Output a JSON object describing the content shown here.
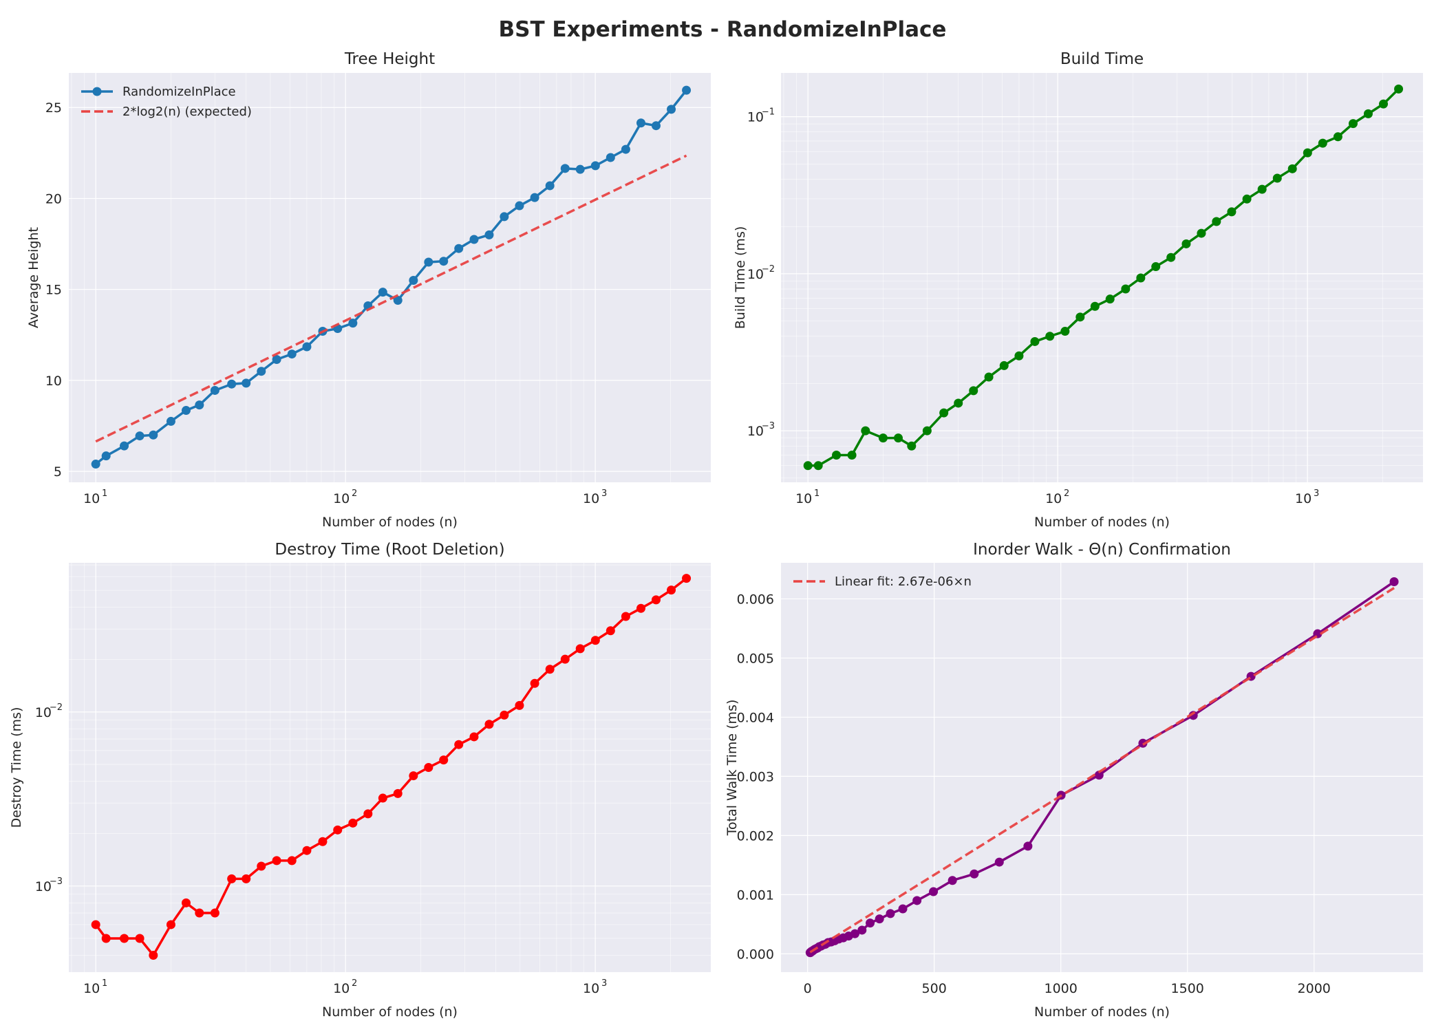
{
  "suptitle": "BST Experiments - RandomizeInPlace",
  "colors": {
    "blue": "#1f77b4",
    "green": "#008000",
    "red": "#ff0000",
    "purple": "#800080",
    "fit": "#e84343",
    "background": "#eaeaf2"
  },
  "chart_data": [
    {
      "id": "tree-height",
      "type": "line",
      "title": "Tree Height",
      "xlabel": "Number of nodes (n)",
      "ylabel": "Average Height",
      "xscale": "log",
      "yscale": "linear",
      "xlim": [
        7.8,
        2900
      ],
      "ylim": [
        4.4,
        26.9
      ],
      "xticks": [
        10,
        100,
        1000
      ],
      "yticks": [
        5,
        10,
        15,
        20,
        25
      ],
      "grid": true,
      "legend": "top-left",
      "x": [
        10,
        11,
        13,
        15,
        17,
        20,
        23,
        26,
        30,
        35,
        40,
        46,
        53,
        61,
        70,
        81,
        93,
        107,
        123,
        141,
        162,
        187,
        215,
        247,
        284,
        327,
        376,
        432,
        497,
        572,
        658,
        757,
        870,
        1001,
        1151,
        1324,
        1523,
        1751,
        2014,
        2316
      ],
      "series": [
        {
          "name": "RandomizeInPlace",
          "color": "#1f77b4",
          "style": "line-marker",
          "values": [
            5.4,
            5.85,
            6.4,
            6.95,
            7.0,
            7.75,
            8.35,
            8.65,
            9.45,
            9.8,
            9.85,
            10.5,
            11.15,
            11.45,
            11.85,
            12.7,
            12.85,
            13.15,
            14.1,
            14.85,
            14.4,
            15.5,
            16.5,
            16.55,
            17.25,
            17.75,
            18.0,
            19.0,
            19.6,
            20.05,
            20.7,
            21.65,
            21.6,
            21.8,
            22.25,
            22.7,
            24.15,
            24.0,
            24.9,
            25.95
          ]
        },
        {
          "name": "2*log2(n) (expected)",
          "color": "#e84343",
          "style": "dashed",
          "function": "2*log2(n)"
        }
      ]
    },
    {
      "id": "build-time",
      "type": "line",
      "title": "Build Time",
      "xlabel": "Number of nodes (n)",
      "ylabel": "Build Time (ms)",
      "xscale": "log",
      "yscale": "log",
      "xlim": [
        7.8,
        2900
      ],
      "ylim": [
        0.00047,
        0.19
      ],
      "xticks": [
        10,
        100,
        1000
      ],
      "yticks": [
        0.001,
        0.01,
        0.1
      ],
      "grid": true,
      "x": [
        10,
        11,
        13,
        15,
        17,
        20,
        23,
        26,
        30,
        35,
        40,
        46,
        53,
        61,
        70,
        81,
        93,
        107,
        123,
        141,
        162,
        187,
        215,
        247,
        284,
        327,
        376,
        432,
        497,
        572,
        658,
        757,
        870,
        1001,
        1151,
        1324,
        1523,
        1751,
        2014,
        2316
      ],
      "series": [
        {
          "name": "",
          "color": "#008000",
          "style": "line-marker",
          "values": [
            0.0006,
            0.0006,
            0.0007,
            0.0007,
            0.001,
            0.0009,
            0.0009,
            0.0008,
            0.001,
            0.0013,
            0.0015,
            0.0018,
            0.0022,
            0.0026,
            0.003,
            0.0037,
            0.004,
            0.0043,
            0.0053,
            0.0062,
            0.0069,
            0.008,
            0.0094,
            0.0111,
            0.0127,
            0.0155,
            0.0181,
            0.0215,
            0.0248,
            0.0299,
            0.0345,
            0.0406,
            0.0466,
            0.0589,
            0.0678,
            0.0745,
            0.0904,
            0.1044,
            0.1205,
            0.1501
          ]
        }
      ]
    },
    {
      "id": "destroy-time",
      "type": "line",
      "title": "Destroy Time (Root Deletion)",
      "xlabel": "Number of nodes (n)",
      "ylabel": "Destroy Time (ms)",
      "xscale": "log",
      "yscale": "log",
      "xlim": [
        7.8,
        2900
      ],
      "ylim": [
        0.00032,
        0.072
      ],
      "xticks": [
        10,
        100,
        1000
      ],
      "yticks": [
        0.001,
        0.01
      ],
      "grid": true,
      "x": [
        10,
        11,
        13,
        15,
        17,
        20,
        23,
        26,
        30,
        35,
        40,
        46,
        53,
        61,
        70,
        81,
        93,
        107,
        123,
        141,
        162,
        187,
        215,
        247,
        284,
        327,
        376,
        432,
        497,
        572,
        658,
        757,
        870,
        1001,
        1151,
        1324,
        1523,
        1751,
        2014,
        2316
      ],
      "series": [
        {
          "name": "",
          "color": "#ff0000",
          "style": "line-marker",
          "values": [
            0.0006,
            0.0005,
            0.0005,
            0.0005,
            0.0004,
            0.0006,
            0.0008,
            0.0007,
            0.0007,
            0.0011,
            0.0011,
            0.0013,
            0.0014,
            0.0014,
            0.0016,
            0.0018,
            0.0021,
            0.0023,
            0.0026,
            0.0032,
            0.0034,
            0.0043,
            0.0048,
            0.0053,
            0.0065,
            0.0072,
            0.0085,
            0.0096,
            0.0109,
            0.0146,
            0.0176,
            0.0201,
            0.0231,
            0.0258,
            0.0293,
            0.0354,
            0.0394,
            0.0441,
            0.0502,
            0.0586
          ]
        }
      ]
    },
    {
      "id": "inorder-walk",
      "type": "line",
      "title": "Inorder Walk - Θ(n) Confirmation",
      "xlabel": "Number of nodes (n)",
      "ylabel": "Total Walk Time (ms)",
      "xscale": "linear",
      "yscale": "linear",
      "xlim": [
        -105,
        2430
      ],
      "ylim": [
        -0.00031,
        0.00661
      ],
      "xticks": [
        0,
        500,
        1000,
        1500,
        2000
      ],
      "yticks": [
        0.0,
        0.001,
        0.002,
        0.003,
        0.004,
        0.005,
        0.006
      ],
      "grid": true,
      "legend": "top-left",
      "x": [
        10,
        11,
        13,
        15,
        17,
        20,
        23,
        26,
        30,
        35,
        40,
        46,
        53,
        61,
        70,
        81,
        93,
        107,
        123,
        141,
        162,
        187,
        215,
        247,
        284,
        327,
        376,
        432,
        497,
        572,
        658,
        757,
        870,
        1001,
        1151,
        1324,
        1523,
        1751,
        2014,
        2316
      ],
      "series": [
        {
          "name": "",
          "color": "#800080",
          "style": "line-marker",
          "values": [
            2e-05,
            2e-05,
            3e-05,
            4e-05,
            4e-05,
            5e-05,
            6e-05,
            7e-05,
            8e-05,
            9e-05,
            0.0001,
            0.00012,
            0.00013,
            0.00015,
            0.00016,
            0.00019,
            0.0002,
            0.00022,
            0.00025,
            0.00027,
            0.0003,
            0.00034,
            0.0004,
            0.00052,
            0.00059,
            0.00068,
            0.00076,
            0.0009,
            0.00105,
            0.00124,
            0.00135,
            0.00155,
            0.00182,
            0.00268,
            0.00302,
            0.00356,
            0.00403,
            0.00469,
            0.00541,
            0.00629
          ]
        },
        {
          "name": "Linear fit: 2.67e-06×n",
          "color": "#e84343",
          "style": "dashed",
          "function": "slope*n",
          "slope": 2.67e-06
        }
      ]
    }
  ]
}
